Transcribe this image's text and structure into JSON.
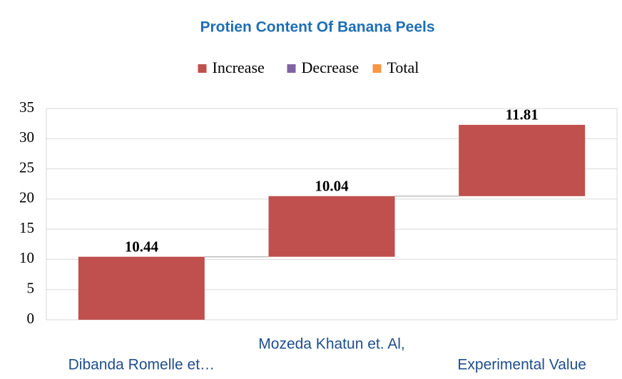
{
  "chart_data": {
    "type": "waterfall",
    "title": "Protien Content Of Banana Peels",
    "legend": [
      {
        "name": "Increase",
        "color": "#c0504d"
      },
      {
        "name": "Decrease",
        "color": "#8064a2"
      },
      {
        "name": "Total",
        "color": "#f79646"
      }
    ],
    "categories": [
      "Dibanda Romelle et…",
      "Mozeda Khatun et. Al,",
      "Experimental  Value"
    ],
    "values": [
      10.44,
      10.04,
      11.81
    ],
    "ylim": [
      0,
      35
    ],
    "yticks": [
      0,
      5,
      10,
      15,
      20,
      25,
      30,
      35
    ],
    "grid": true
  }
}
